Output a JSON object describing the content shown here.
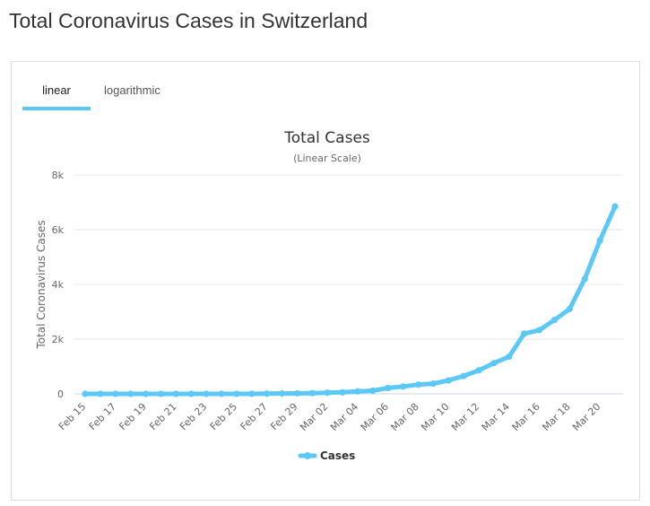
{
  "page": {
    "title": "Total Coronavirus Cases in Switzerland"
  },
  "tabs": [
    {
      "label": "linear",
      "active": true
    },
    {
      "label": "logarithmic",
      "active": false
    }
  ],
  "colors": {
    "accent": "#5bc8f5",
    "series": "#5bc8f5",
    "axis": "#ccd6eb",
    "grid": "#e6e6e6"
  },
  "chart_data": {
    "type": "line",
    "title": "Total Cases",
    "subtitle": "(Linear Scale)",
    "ylabel": "Total Coronavirus Cases",
    "xlabel": "",
    "ylim": [
      0,
      8000
    ],
    "yticks": [
      0,
      2000,
      4000,
      6000,
      8000
    ],
    "ytick_labels": [
      "0",
      "2k",
      "4k",
      "6k",
      "8k"
    ],
    "grid": true,
    "legend": {
      "position": "bottom-center"
    },
    "categories": [
      "Feb 15",
      "Feb 16",
      "Feb 17",
      "Feb 18",
      "Feb 19",
      "Feb 20",
      "Feb 21",
      "Feb 22",
      "Feb 23",
      "Feb 24",
      "Feb 25",
      "Feb 26",
      "Feb 27",
      "Feb 28",
      "Feb 29",
      "Mar 01",
      "Mar 02",
      "Mar 03",
      "Mar 04",
      "Mar 05",
      "Mar 06",
      "Mar 07",
      "Mar 08",
      "Mar 09",
      "Mar 10",
      "Mar 11",
      "Mar 12",
      "Mar 13",
      "Mar 14",
      "Mar 15",
      "Mar 16",
      "Mar 17",
      "Mar 18",
      "Mar 19",
      "Mar 20",
      "Mar 21"
    ],
    "x_tick_labels": [
      "Feb 15",
      "Feb 17",
      "Feb 19",
      "Feb 21",
      "Feb 23",
      "Feb 25",
      "Feb 27",
      "Feb 29",
      "Mar 02",
      "Mar 04",
      "Mar 06",
      "Mar 08",
      "Mar 10",
      "Mar 12",
      "Mar 14",
      "Mar 16",
      "Mar 18",
      "Mar 20"
    ],
    "series": [
      {
        "name": "Cases",
        "values": [
          0,
          0,
          0,
          0,
          0,
          0,
          0,
          0,
          0,
          0,
          1,
          1,
          8,
          15,
          18,
          27,
          42,
          56,
          90,
          114,
          214,
          268,
          337,
          374,
          491,
          652,
          858,
          1125,
          1359,
          2200,
          2330,
          2700,
          3100,
          4200,
          5600,
          6850
        ]
      }
    ]
  }
}
